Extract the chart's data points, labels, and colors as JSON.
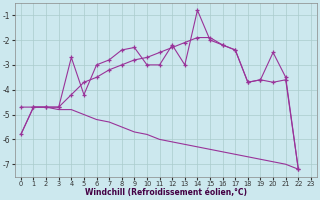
{
  "background_color": "#cce8ee",
  "grid_color": "#aacccc",
  "line_color": "#993399",
  "xlabel": "Windchill (Refroidissement éolien,°C)",
  "x": [
    0,
    1,
    2,
    3,
    4,
    5,
    6,
    7,
    8,
    9,
    10,
    11,
    12,
    13,
    14,
    15,
    16,
    17,
    18,
    19,
    20,
    21,
    22
  ],
  "line1_y": [
    -5.8,
    -4.7,
    -4.7,
    -4.7,
    -2.7,
    -4.2,
    -3.0,
    -2.8,
    -2.4,
    -2.3,
    -3.0,
    -3.0,
    -2.2,
    -3.0,
    -0.8,
    -2.0,
    -2.2,
    -2.4,
    -3.7,
    -3.6,
    -2.5,
    -3.5,
    -7.2
  ],
  "line2_y": [
    -4.7,
    -4.7,
    -4.7,
    -4.7,
    -4.2,
    -3.7,
    -3.5,
    -3.2,
    -3.0,
    -2.8,
    -2.7,
    -2.5,
    -2.3,
    -2.1,
    -1.9,
    -1.9,
    -2.2,
    -2.4,
    -3.7,
    -3.6,
    -3.7,
    -3.6,
    -7.2
  ],
  "line3_y": [
    -5.8,
    -4.7,
    -4.7,
    -4.8,
    -4.8,
    -5.0,
    -5.2,
    -5.3,
    -5.5,
    -5.7,
    -5.8,
    -6.0,
    -6.1,
    -6.2,
    -6.3,
    -6.4,
    -6.5,
    -6.6,
    -6.7,
    -6.8,
    -6.9,
    -7.0,
    -7.2
  ],
  "ylim": [
    -7.5,
    -0.5
  ],
  "xlim": [
    -0.5,
    23.5
  ],
  "yticks": [
    -7,
    -6,
    -5,
    -4,
    -3,
    -2,
    -1
  ],
  "xticks": [
    0,
    1,
    2,
    3,
    4,
    5,
    6,
    7,
    8,
    9,
    10,
    11,
    12,
    13,
    14,
    15,
    16,
    17,
    18,
    19,
    20,
    21,
    22,
    23
  ]
}
